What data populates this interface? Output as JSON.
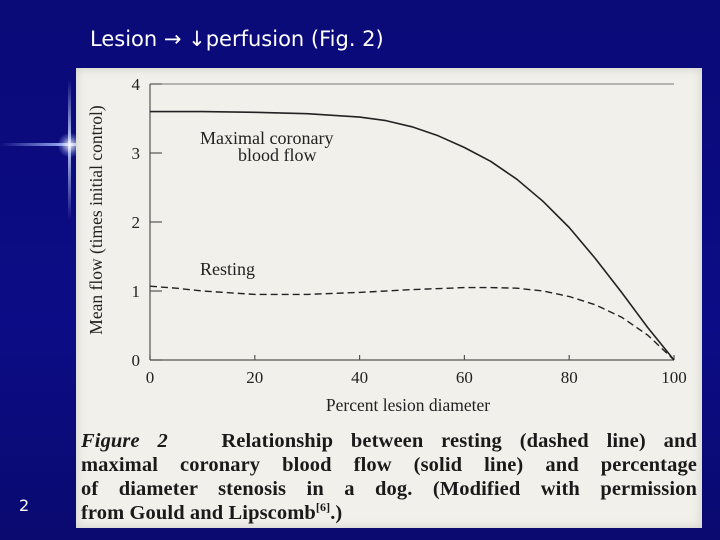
{
  "slide": {
    "title": "Lesion → ↓perfusion (Fig. 2)",
    "page_number": "2"
  },
  "caption": {
    "figure_label": "Figure 2",
    "line1_rest": "Relationship between resting (dashed line) and",
    "line2": "maximal coronary blood flow (solid line) and percentage",
    "line3": "of diameter stenosis in a dog. (Modified with permission",
    "line4_pre": "from Gould and Lipscomb",
    "line4_ref": "[6]",
    "line4_post": ".)"
  },
  "chart_data": {
    "type": "line",
    "title": "",
    "xlabel": "Percent lesion diameter",
    "ylabel": "Mean flow (times initial control)",
    "xlim": [
      0,
      100
    ],
    "ylim": [
      0,
      4
    ],
    "xticks": [
      0,
      20,
      40,
      60,
      80,
      100
    ],
    "yticks": [
      0,
      1,
      2,
      3,
      4
    ],
    "series": [
      {
        "name": "Maximal coronary blood flow",
        "label_lines": [
          "Maximal coronary",
          "blood flow"
        ],
        "style": "solid",
        "x": [
          0,
          10,
          20,
          30,
          40,
          45,
          50,
          55,
          60,
          65,
          70,
          75,
          80,
          85,
          90,
          95,
          100
        ],
        "y": [
          3.6,
          3.6,
          3.59,
          3.57,
          3.52,
          3.47,
          3.38,
          3.25,
          3.08,
          2.88,
          2.62,
          2.3,
          1.92,
          1.47,
          0.98,
          0.47,
          0.0
        ]
      },
      {
        "name": "Resting",
        "label_lines": [
          "Resting"
        ],
        "style": "dashed",
        "x": [
          0,
          5,
          10,
          20,
          30,
          40,
          50,
          60,
          65,
          70,
          75,
          80,
          85,
          90,
          95,
          100
        ],
        "y": [
          1.07,
          1.04,
          1.0,
          0.95,
          0.95,
          0.98,
          1.02,
          1.05,
          1.05,
          1.04,
          1.0,
          0.92,
          0.8,
          0.62,
          0.36,
          0.0
        ]
      }
    ]
  }
}
